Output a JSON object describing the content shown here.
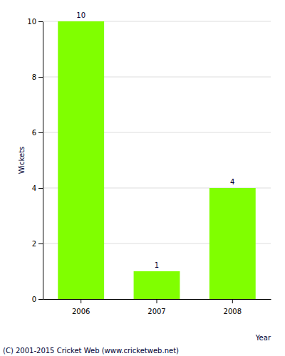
{
  "chart_data": {
    "type": "bar",
    "categories": [
      "2006",
      "2007",
      "2008"
    ],
    "values": [
      10,
      1,
      4
    ],
    "color": "#80ff00",
    "y_label": "Wickets",
    "x_label": "Year",
    "annotation": "(C) 2001-2015 Cricket Web (www.cricketweb.net)",
    "ylim": [
      0,
      10
    ],
    "yticks": [
      0,
      2,
      4,
      6,
      8,
      10
    ],
    "grid": true,
    "data_labels": true
  }
}
